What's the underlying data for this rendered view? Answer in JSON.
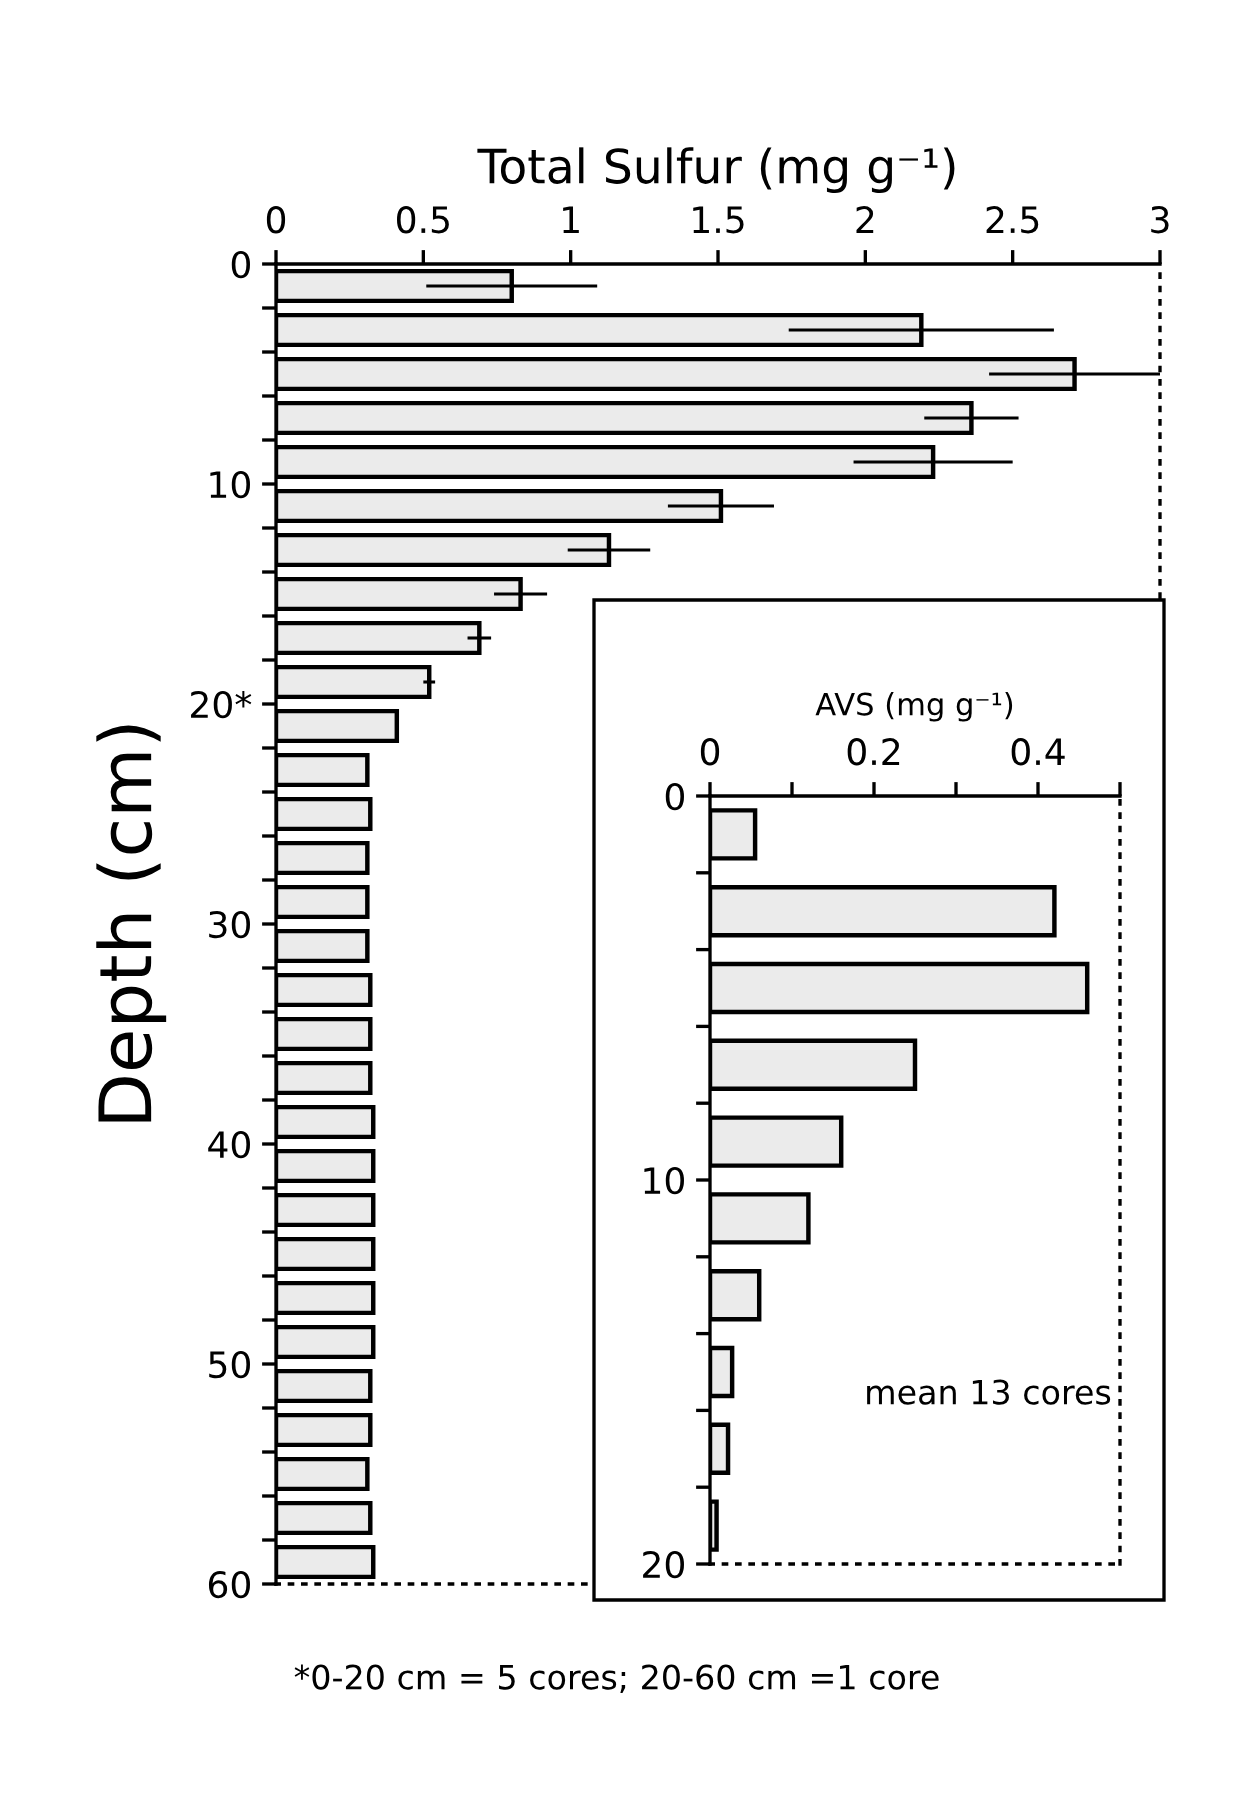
{
  "chart_data": [
    {
      "type": "bar",
      "orientation": "horizontal",
      "xlabel": "Total Sulfur (mg g⁻¹)",
      "ylabel": "Depth (cm)",
      "color": "#ebebeb",
      "x": [
        1,
        3,
        5,
        7,
        9,
        11,
        13,
        15,
        17,
        19,
        21,
        23,
        25,
        27,
        29,
        31,
        33,
        35,
        37,
        39,
        41,
        43,
        45,
        47,
        49,
        51,
        53,
        55,
        57,
        59
      ],
      "values": [
        0.8,
        2.19,
        2.71,
        2.36,
        2.23,
        1.51,
        1.13,
        0.83,
        0.69,
        0.52,
        0.41,
        0.31,
        0.32,
        0.31,
        0.31,
        0.31,
        0.32,
        0.32,
        0.32,
        0.33,
        0.33,
        0.33,
        0.33,
        0.33,
        0.33,
        0.32,
        0.32,
        0.31,
        0.32,
        0.33
      ],
      "errors": [
        0.29,
        0.45,
        0.29,
        0.16,
        0.27,
        0.18,
        0.14,
        0.09,
        0.04,
        0.02,
        null,
        null,
        null,
        null,
        null,
        null,
        null,
        null,
        null,
        null,
        null,
        null,
        null,
        null,
        null,
        null,
        null,
        null,
        null,
        null
      ],
      "xlim": [
        0,
        3
      ],
      "xticks": [
        0,
        {
          "value": 0.5,
          "label": "0.5"
        },
        1,
        {
          "value": 1.5,
          "label": "1.5"
        },
        2,
        {
          "value": 2.5,
          "label": "2.5"
        },
        3
      ],
      "ylim": [
        60,
        0
      ],
      "yticks": [
        0,
        {
          "value": 2,
          "label": null
        },
        {
          "value": 4,
          "label": null
        },
        {
          "value": 6,
          "label": null
        },
        {
          "value": 8,
          "label": null
        },
        10,
        {
          "value": 12,
          "label": null
        },
        {
          "value": 14,
          "label": null
        },
        {
          "value": 16,
          "label": null
        },
        {
          "value": 18,
          "label": null
        },
        {
          "value": 20,
          "label": "20*"
        },
        {
          "value": 22,
          "label": null
        },
        {
          "value": 24,
          "label": null
        },
        {
          "value": 26,
          "label": null
        },
        {
          "value": 28,
          "label": null
        },
        30,
        {
          "value": 32,
          "label": null
        },
        {
          "value": 34,
          "label": null
        },
        {
          "value": 36,
          "label": null
        },
        {
          "value": 38,
          "label": null
        },
        40,
        {
          "value": 42,
          "label": null
        },
        {
          "value": 44,
          "label": null
        },
        {
          "value": 46,
          "label": null
        },
        {
          "value": 48,
          "label": null
        },
        50,
        {
          "value": 52,
          "label": null
        },
        {
          "value": 54,
          "label": null
        },
        {
          "value": 56,
          "label": null
        },
        {
          "value": 58,
          "label": null
        },
        60
      ],
      "annotations": [
        "*0-20 cm = 5 cores; 20-60 cm =1 core"
      ]
    },
    {
      "type": "bar",
      "orientation": "horizontal",
      "xlabel": "AVS (mg g⁻¹)",
      "color": "#ebebeb",
      "x": [
        1,
        3,
        5,
        7,
        9,
        11,
        13,
        15,
        17,
        19
      ],
      "values": [
        0.055,
        0.42,
        0.46,
        0.25,
        0.16,
        0.12,
        0.06,
        0.027,
        0.022,
        0.008
      ],
      "xlim": [
        0,
        0.5
      ],
      "xticks": [
        0,
        {
          "value": 0.1,
          "label": null
        },
        {
          "value": 0.2,
          "label": "0.2"
        },
        {
          "value": 0.3,
          "label": null
        },
        {
          "value": 0.4,
          "label": "0.4"
        },
        {
          "value": 0.5,
          "label": null
        }
      ],
      "ylim": [
        20,
        0
      ],
      "yticks": [
        0,
        {
          "value": 2,
          "label": null
        },
        {
          "value": 4,
          "label": null
        },
        {
          "value": 6,
          "label": null
        },
        {
          "value": 8,
          "label": null
        },
        10,
        {
          "value": 12,
          "label": null
        },
        {
          "value": 14,
          "label": null
        },
        {
          "value": 16,
          "label": null
        },
        {
          "value": 18,
          "label": null
        },
        20
      ],
      "annotations": [
        "mean 13 cores"
      ]
    }
  ]
}
